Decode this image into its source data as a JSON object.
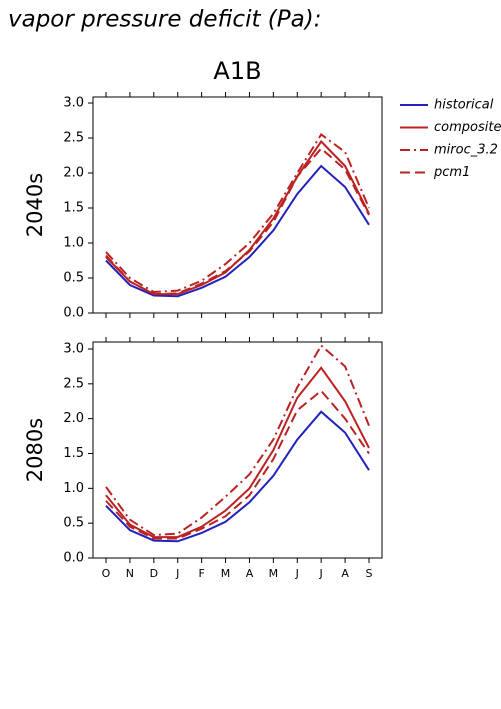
{
  "title": "vapor pressure deficit (Pa):",
  "chart_data": [
    {
      "type": "line",
      "title": "A1B",
      "ylabel": "2040s",
      "ylim": [
        0,
        3
      ],
      "yticks": [
        {
          "value": 0,
          "label": "0.0"
        },
        0.5,
        {
          "value": 1,
          "label": "1.0"
        },
        1.5,
        {
          "value": 2,
          "label": "2.0"
        },
        2.5,
        {
          "value": 3,
          "label": "3.0"
        }
      ],
      "series": [
        {
          "name": "historical",
          "color": "#2222bb",
          "style": "solid",
          "values": [
            0.75,
            0.4,
            0.25,
            0.24,
            0.36,
            0.52,
            0.8,
            1.18,
            1.7,
            2.1,
            1.8,
            1.26
          ]
        },
        {
          "name": "composite",
          "color": "#bb2222",
          "style": "solid",
          "values": [
            0.8,
            0.45,
            0.27,
            0.27,
            0.4,
            0.58,
            0.9,
            1.35,
            1.95,
            2.45,
            2.1,
            1.42
          ]
        },
        {
          "name": "miroc_3.2",
          "color": "#bb2222",
          "style": "dashdot",
          "values": [
            0.87,
            0.5,
            0.3,
            0.32,
            0.46,
            0.7,
            1.0,
            1.42,
            2.0,
            2.55,
            2.3,
            1.5
          ]
        },
        {
          "name": "pcm1",
          "color": "#bb2222",
          "style": "dash",
          "values": [
            0.82,
            0.45,
            0.27,
            0.28,
            0.42,
            0.6,
            0.88,
            1.3,
            1.95,
            2.35,
            2.05,
            1.4
          ]
        }
      ]
    },
    {
      "type": "line",
      "ylabel": "2080s",
      "categories": [
        "O",
        "N",
        "D",
        "J",
        "F",
        "M",
        "A",
        "M",
        "J",
        "J",
        "A",
        "S"
      ],
      "ylim": [
        0,
        3
      ],
      "yticks": [
        {
          "value": 0,
          "label": "0.0"
        },
        0.5,
        {
          "value": 1,
          "label": "1.0"
        },
        1.5,
        {
          "value": 2,
          "label": "2.0"
        },
        2.5,
        {
          "value": 3,
          "label": "3.0"
        }
      ],
      "series": [
        {
          "color": "#2222bb",
          "style": "solid",
          "values": [
            0.75,
            0.4,
            0.25,
            0.24,
            0.36,
            0.52,
            0.8,
            1.18,
            1.7,
            2.1,
            1.8,
            1.26
          ]
        },
        {
          "color": "#bb2222",
          "style": "solid",
          "values": [
            0.9,
            0.48,
            0.3,
            0.3,
            0.45,
            0.68,
            1.0,
            1.55,
            2.3,
            2.73,
            2.25,
            1.58
          ]
        },
        {
          "color": "#bb2222",
          "style": "dashdot",
          "values": [
            1.02,
            0.55,
            0.33,
            0.35,
            0.58,
            0.88,
            1.2,
            1.7,
            2.45,
            3.05,
            2.75,
            1.9
          ]
        },
        {
          "color": "#bb2222",
          "style": "dash",
          "values": [
            0.82,
            0.45,
            0.28,
            0.28,
            0.42,
            0.6,
            0.9,
            1.42,
            2.12,
            2.4,
            2.0,
            1.5
          ]
        }
      ]
    }
  ]
}
